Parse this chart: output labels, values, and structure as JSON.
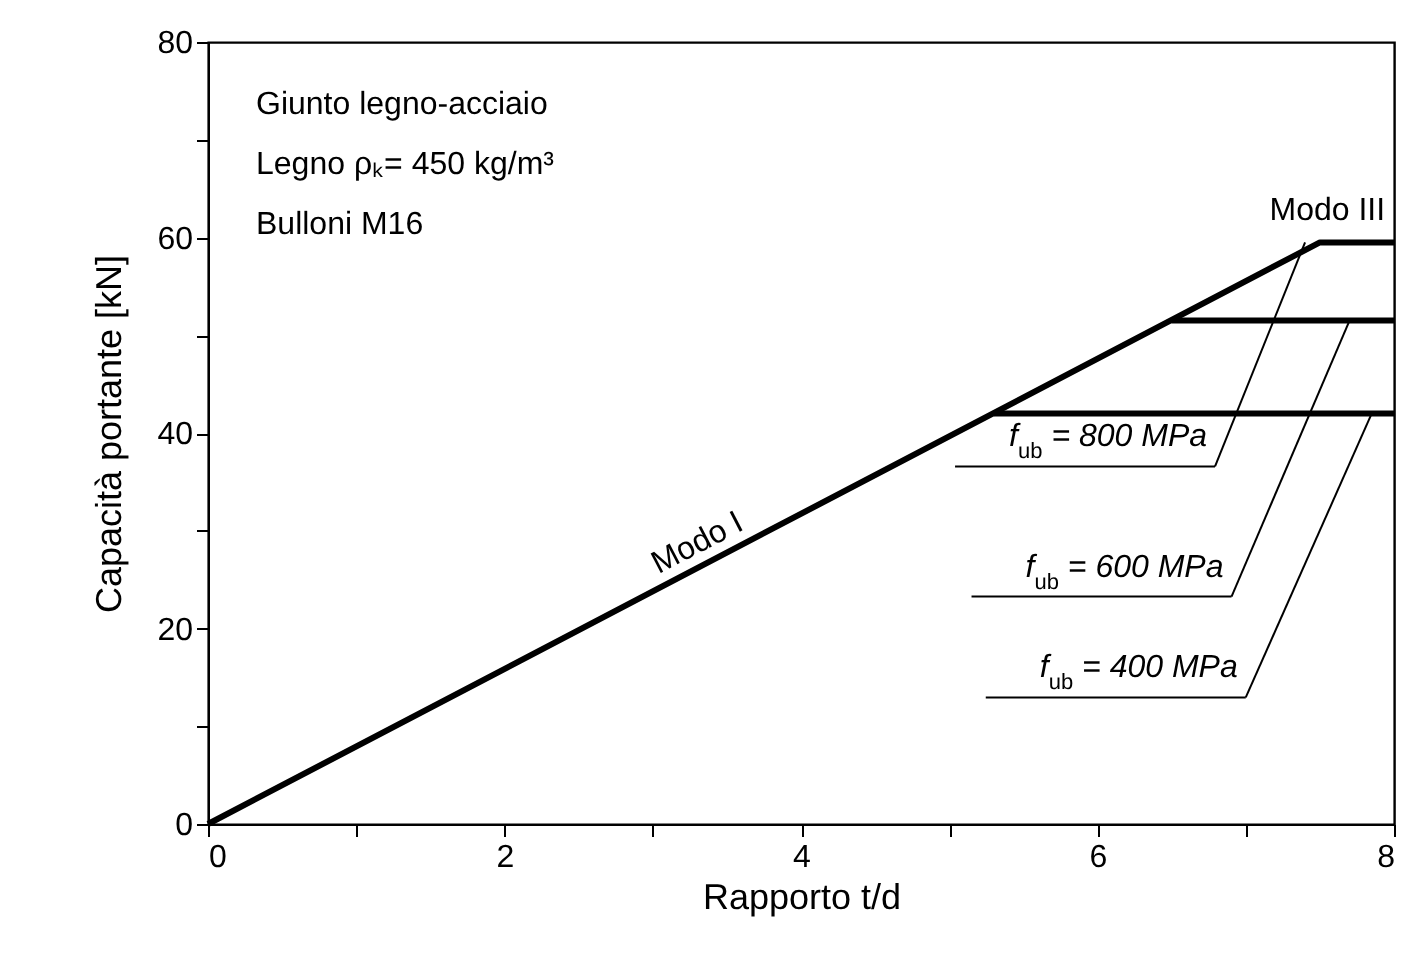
{
  "chart_data": {
    "type": "line",
    "xlabel": "Rapporto  t/d",
    "ylabel": "Capacità portante  [kN]",
    "xlim": [
      0,
      8
    ],
    "ylim": [
      0,
      80
    ],
    "xticks": [
      0,
      {
        "value": 1,
        "label": null
      },
      2,
      {
        "value": 3,
        "label": null
      },
      4,
      {
        "value": 5,
        "label": null
      },
      6,
      {
        "value": 7,
        "label": null
      },
      8
    ],
    "yticks": [
      0,
      {
        "value": 10,
        "label": null
      },
      20,
      {
        "value": 30,
        "label": null
      },
      40,
      {
        "value": 50,
        "label": null
      },
      60,
      {
        "value": 70,
        "label": null
      },
      80
    ],
    "series": [
      {
        "color": "#000000",
        "x": [
          0,
          7.5,
          8
        ],
        "values": [
          0,
          59.5,
          59.5
        ]
      },
      {
        "color": "#000000",
        "x": [
          6.5,
          8
        ],
        "values": [
          51.5,
          51.5
        ]
      },
      {
        "color": "#000000",
        "x": [
          5.3,
          8
        ],
        "values": [
          42,
          42
        ]
      }
    ],
    "annotations": [
      "Giunto legno-acciaio",
      "Legno ρₖ= 450 kg/m³",
      "Bulloni M16",
      {
        "text": "Modo I",
        "x": 3.35,
        "y": 26.5
      },
      {
        "text": "Modo III",
        "x": 7.55,
        "y": 59.5
      },
      {
        "text": "f$_{ub}$ = 800 MPa",
        "x": 7.4,
        "y": 59.5
      },
      {
        "text": "f$_{ub}$ = 600 MPa",
        "x": 7.7,
        "y": 51.5
      },
      {
        "text": "f$_{ub}$ = 400 MPa",
        "x": 7.85,
        "y": 42
      }
    ]
  }
}
